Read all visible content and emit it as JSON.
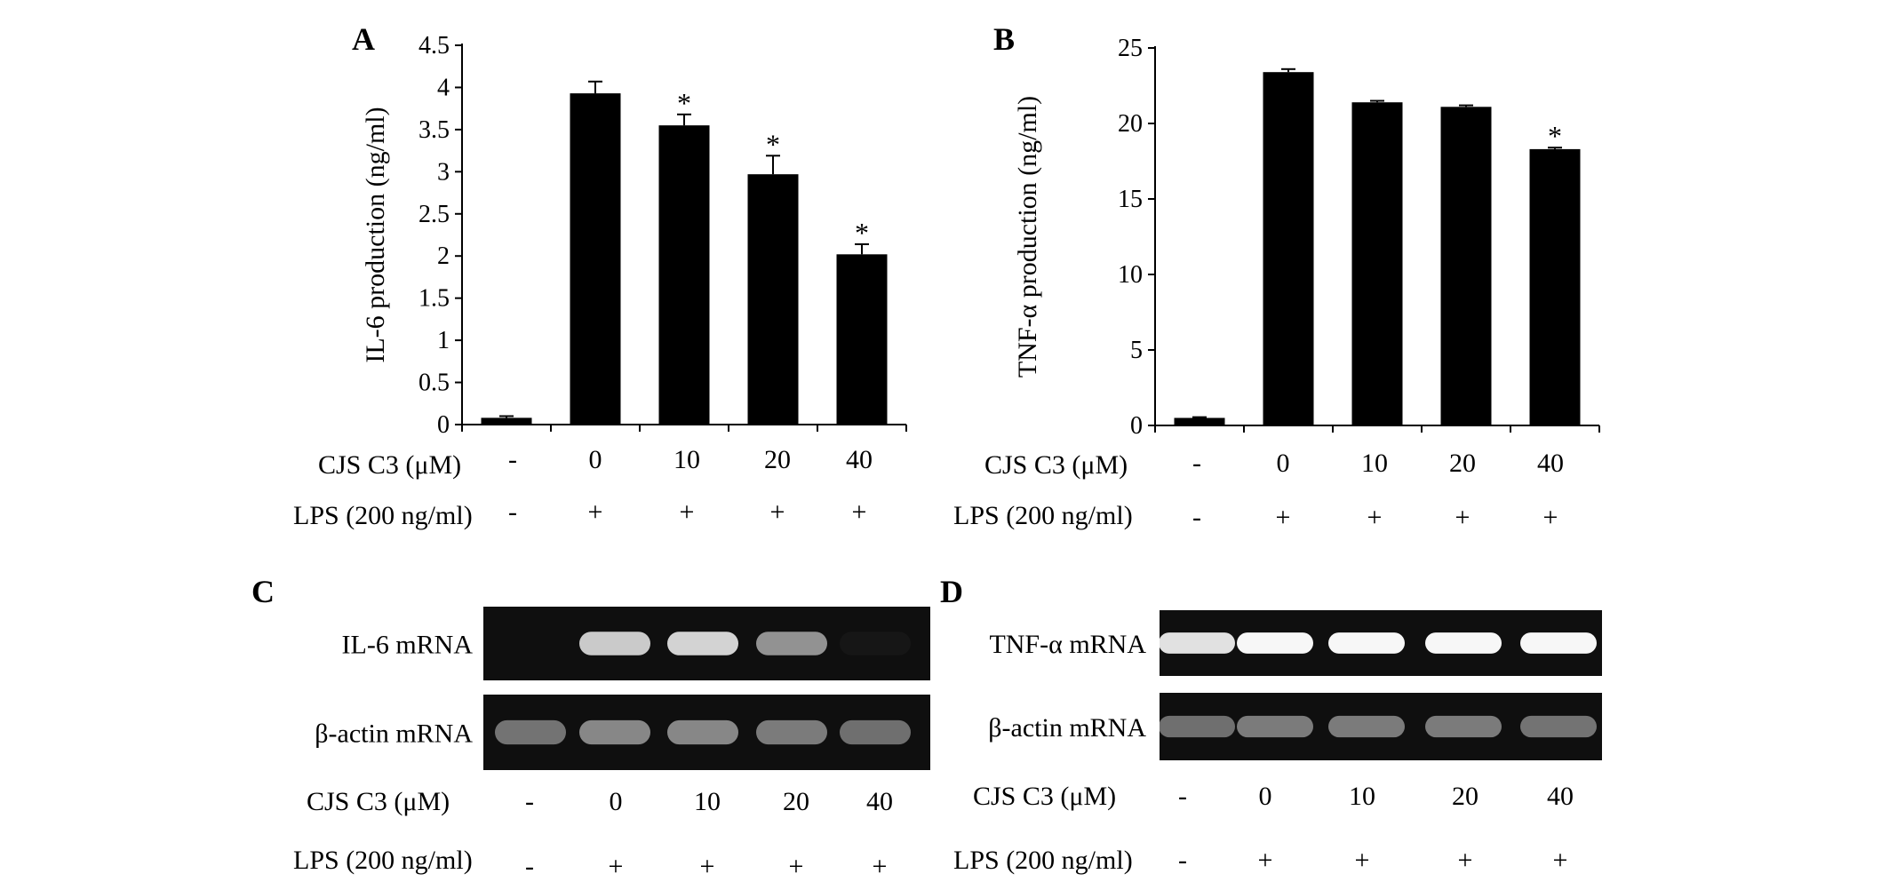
{
  "figure": {
    "panels": {
      "A": "A",
      "B": "B",
      "C": "C",
      "D": "D"
    },
    "row_labels": {
      "cjs": "CJS C3 (μM)",
      "lps": "LPS (200 ng/ml)"
    },
    "conditions": {
      "cjs": [
        "-",
        "0",
        "10",
        "20",
        "40"
      ],
      "lps": [
        "-",
        "+",
        "+",
        "+",
        "+"
      ]
    },
    "gel_C": {
      "bands": [
        "IL-6 mRNA",
        "β-actin mRNA"
      ],
      "intensity": [
        [
          0.0,
          0.78,
          0.82,
          0.55,
          0.03
        ],
        [
          0.42,
          0.5,
          0.5,
          0.45,
          0.4
        ]
      ]
    },
    "gel_D": {
      "bands": [
        "TNF-α mRNA",
        "β-actin mRNA"
      ],
      "intensity": [
        [
          0.88,
          0.97,
          0.97,
          0.97,
          0.97
        ],
        [
          0.4,
          0.45,
          0.45,
          0.45,
          0.42
        ]
      ]
    },
    "colors": {
      "bar": "#000000",
      "gel_bg": "#0f0f0f",
      "band": "#ffffff"
    }
  },
  "chart_data": [
    {
      "type": "bar",
      "panel": "A",
      "title": "",
      "xlabel": "",
      "ylabel": "IL-6 production (ng/ml)",
      "categories": [
        "-",
        "0",
        "10",
        "20",
        "40"
      ],
      "values": [
        0.08,
        3.93,
        3.55,
        2.97,
        2.02
      ],
      "errors": [
        0.02,
        0.14,
        0.13,
        0.22,
        0.12
      ],
      "significant": [
        false,
        false,
        true,
        true,
        true
      ],
      "significance_mark": "*",
      "ylim": [
        0,
        4.5
      ],
      "yticks": [
        "0",
        "0.5",
        "1",
        "1.5",
        "2",
        "2.5",
        "3",
        "3.5",
        "4",
        "4.5"
      ],
      "ytick_values": [
        0,
        0.5,
        1,
        1.5,
        2,
        2.5,
        3,
        3.5,
        4,
        4.5
      ],
      "grid": false
    },
    {
      "type": "bar",
      "panel": "B",
      "title": "",
      "xlabel": "",
      "ylabel": "TNF-α production (ng/ml)",
      "categories": [
        "-",
        "0",
        "10",
        "20",
        "40"
      ],
      "values": [
        0.5,
        23.4,
        21.4,
        21.1,
        18.3
      ],
      "errors": [
        0.05,
        0.2,
        0.1,
        0.1,
        0.1
      ],
      "significant": [
        false,
        false,
        false,
        false,
        true
      ],
      "significance_mark": "*",
      "ylim": [
        0,
        25
      ],
      "yticks": [
        "0",
        "5",
        "10",
        "15",
        "20",
        "25"
      ],
      "ytick_values": [
        0,
        5,
        10,
        15,
        20,
        25
      ],
      "grid": false
    }
  ]
}
